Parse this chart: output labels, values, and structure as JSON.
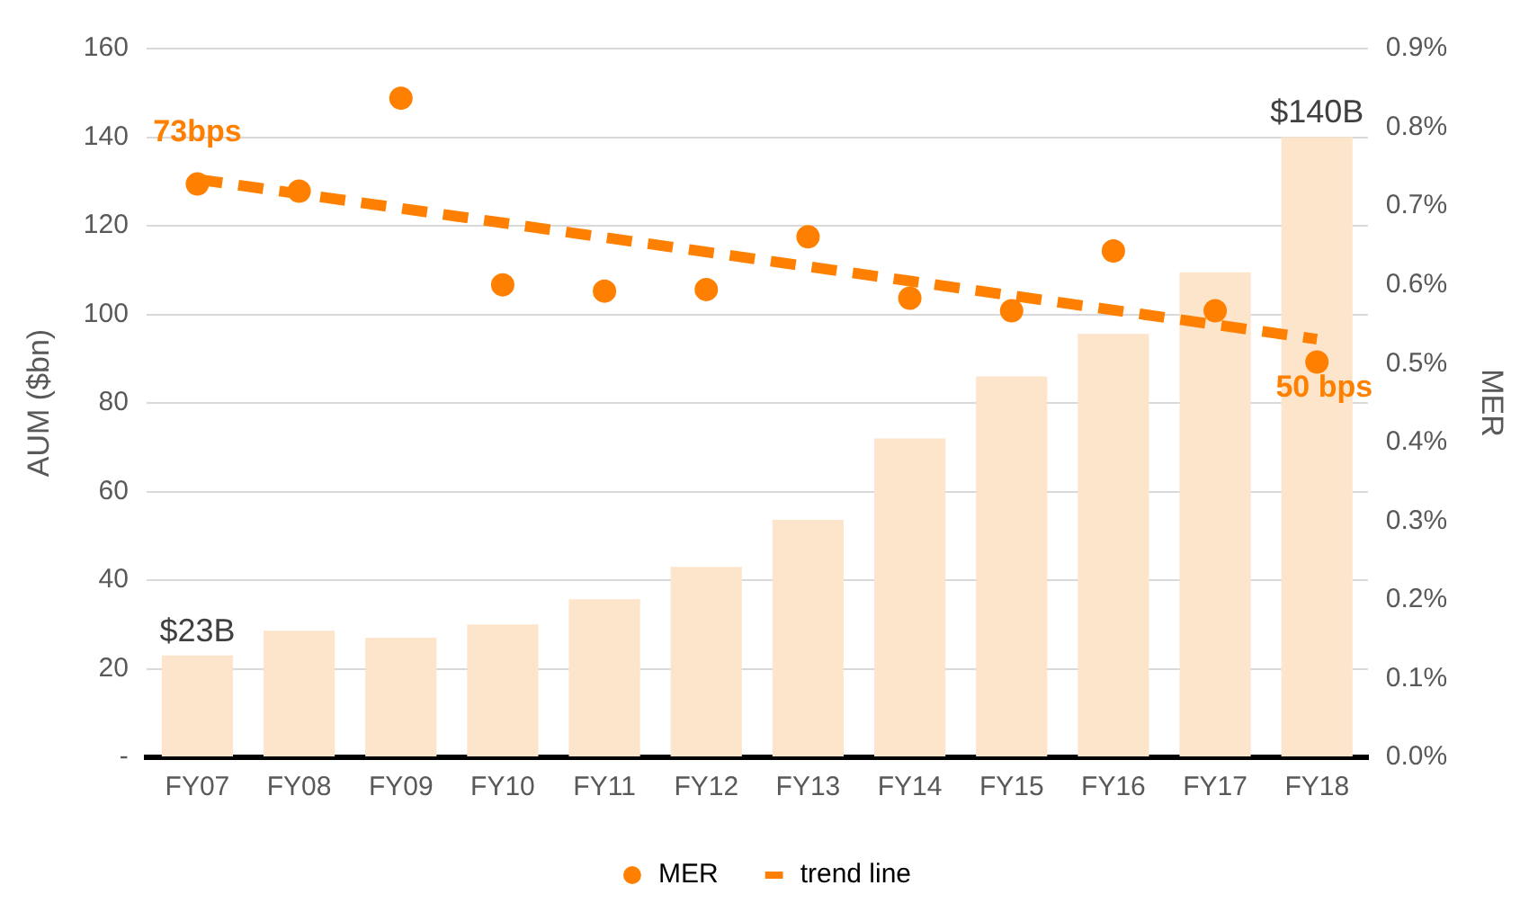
{
  "chart_data": {
    "type": "bar",
    "categories": [
      "FY07",
      "FY08",
      "FY09",
      "FY10",
      "FY11",
      "FY12",
      "FY13",
      "FY14",
      "FY15",
      "FY16",
      "FY17",
      "FY18"
    ],
    "series": [
      {
        "color": "#fde5cc",
        "values": [
          23,
          28.6,
          27,
          30,
          35.7,
          43,
          53.6,
          72,
          86,
          95.6,
          109.5,
          140
        ],
        "value_labels": [
          "$23B",
          null,
          null,
          null,
          null,
          null,
          null,
          null,
          null,
          null,
          null,
          "$140B"
        ]
      },
      {
        "type": "scatter",
        "name": "MER",
        "color": "#ff8000",
        "axis": "y2",
        "marker": "circle",
        "values": [
          0.728,
          0.719,
          0.837,
          0.6,
          0.592,
          0.594,
          0.661,
          0.583,
          0.567,
          0.643,
          0.567,
          0.502
        ]
      },
      {
        "type": "line",
        "name": "trend line",
        "color": "#ff8000",
        "axis": "y2",
        "line_style": "dashed",
        "marker": "none",
        "x": [
          "FY07",
          "FY18"
        ],
        "values": [
          0.734,
          0.531
        ]
      }
    ],
    "annotations": [
      "73bps",
      "50 bps"
    ],
    "ylabel": "AUM ($bn)",
    "y2label": "MER",
    "ylim": [
      0,
      160
    ],
    "yticks": [
      {
        "value": 0,
        "label": "-"
      },
      20,
      40,
      60,
      80,
      100,
      120,
      140,
      160
    ],
    "y2lim": [
      0,
      0.9
    ],
    "y2ticks": [
      {
        "value": 0,
        "label": "0.0%"
      },
      {
        "value": 0.1,
        "label": "0.1%"
      },
      {
        "value": 0.2,
        "label": "0.2%"
      },
      {
        "value": 0.3,
        "label": "0.3%"
      },
      {
        "value": 0.4,
        "label": "0.4%"
      },
      {
        "value": 0.5,
        "label": "0.5%"
      },
      {
        "value": 0.6,
        "label": "0.6%"
      },
      {
        "value": 0.7,
        "label": "0.7%"
      },
      {
        "value": 0.8,
        "label": "0.8%"
      },
      {
        "value": 0.9,
        "label": "0.9%"
      }
    ],
    "grid": "y",
    "legend": "bottom"
  }
}
